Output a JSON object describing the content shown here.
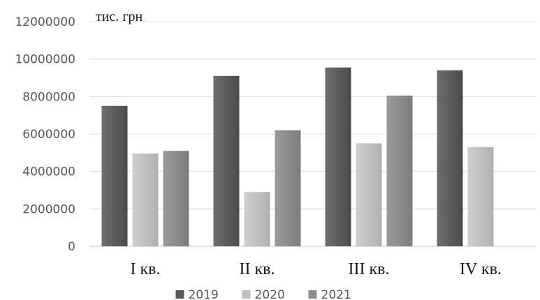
{
  "chart_data": {
    "type": "bar",
    "unit_label": "тис. грн",
    "categories": [
      "I кв.",
      "II кв.",
      "III кв.",
      "IV кв."
    ],
    "y_ticks": [
      "0",
      "2000000",
      "4000000",
      "6000000",
      "8000000",
      "10000000",
      "12000000"
    ],
    "ylim": [
      0,
      12000000
    ],
    "grid": true,
    "legend_position": "bottom",
    "series": [
      {
        "name": "2019",
        "color": "#595959",
        "values": [
          7500000,
          9100000,
          9550000,
          9400000
        ]
      },
      {
        "name": "2020",
        "color": "#bfbfbf",
        "values": [
          4950000,
          2900000,
          5500000,
          5300000
        ]
      },
      {
        "name": "2021",
        "color": "#8c8c8c",
        "values": [
          5100000,
          6200000,
          8050000,
          null
        ]
      }
    ]
  }
}
